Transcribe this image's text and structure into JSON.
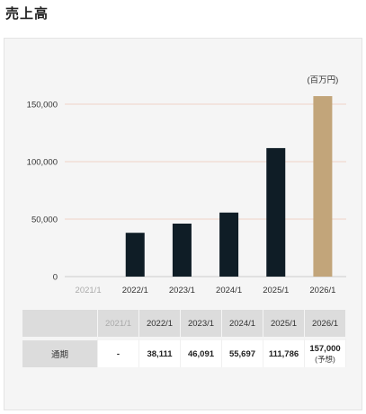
{
  "section_title": "売上高",
  "unit_label": "(百万円)",
  "colors": {
    "actual_bar": "#0f1d26",
    "forecast_bar": "#c2a57a",
    "gridline": "#efd3c7",
    "panel": "#f5f5f5",
    "muted_text": "#aaaaaa"
  },
  "chart_data": {
    "type": "bar",
    "categories": [
      "2021/1",
      "2022/1",
      "2023/1",
      "2024/1",
      "2025/1",
      "2026/1"
    ],
    "values": [
      null,
      38111,
      46091,
      55697,
      111786,
      157000
    ],
    "forecast_index": 5,
    "muted_index": 0,
    "ylim": [
      0,
      150000
    ],
    "yticks": [
      0,
      50000,
      100000,
      150000
    ],
    "ytick_labels": [
      "0",
      "50,000",
      "100,000",
      "150,000"
    ],
    "grid": true
  },
  "table": {
    "row_label": "通期",
    "years": [
      "2021/1",
      "2022/1",
      "2023/1",
      "2024/1",
      "2025/1",
      "2026/1"
    ],
    "values": [
      "-",
      "38,111",
      "46,091",
      "55,697",
      "111,786",
      "157,000"
    ],
    "forecast_note": "(予想)"
  }
}
